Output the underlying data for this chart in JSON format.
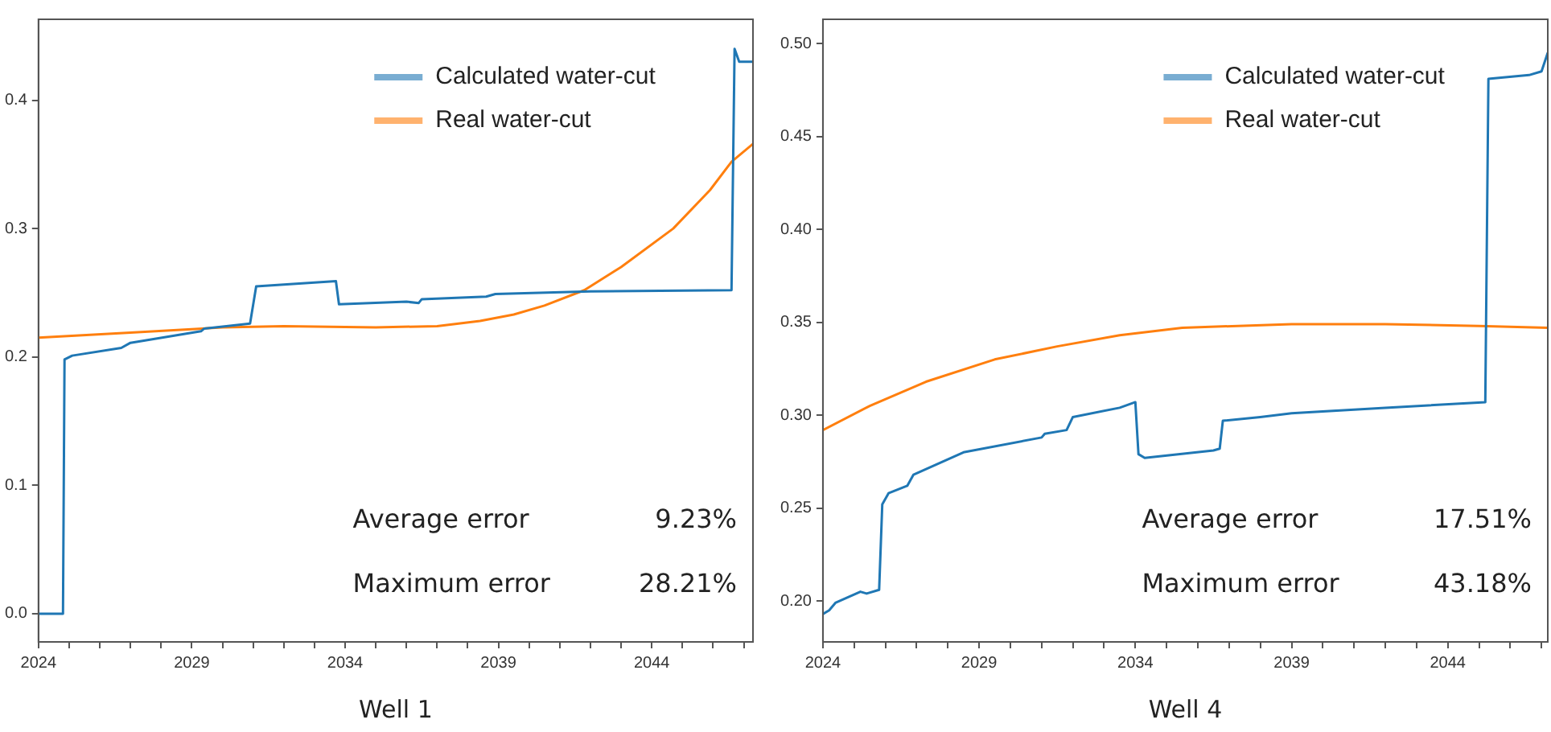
{
  "chart_data": [
    {
      "type": "line",
      "xlabel": "Well 1",
      "legend": "top right",
      "marker": "none",
      "line_style": "solid",
      "grid": false,
      "xlim": [
        2024,
        2047.3
      ],
      "ylim": [
        -0.022,
        0.463
      ],
      "xticks": [
        2024,
        {
          "value": 2025,
          "label": null
        },
        {
          "value": 2026,
          "label": null
        },
        {
          "value": 2027,
          "label": null
        },
        {
          "value": 2028,
          "label": null
        },
        2029,
        {
          "value": 2030,
          "label": null
        },
        {
          "value": 2031,
          "label": null
        },
        {
          "value": 2032,
          "label": null
        },
        {
          "value": 2033,
          "label": null
        },
        2034,
        {
          "value": 2035,
          "label": null
        },
        {
          "value": 2036,
          "label": null
        },
        {
          "value": 2037,
          "label": null
        },
        {
          "value": 2038,
          "label": null
        },
        2039,
        {
          "value": 2040,
          "label": null
        },
        {
          "value": 2041,
          "label": null
        },
        {
          "value": 2042,
          "label": null
        },
        {
          "value": 2043,
          "label": null
        },
        2044,
        {
          "value": 2045,
          "label": null
        },
        {
          "value": 2046,
          "label": null
        },
        {
          "value": 2047,
          "label": null
        }
      ],
      "yticks": [
        {
          "value": 0,
          "label": "0.0"
        },
        0.1,
        0.2,
        0.3,
        0.4
      ],
      "annotations": [
        "Average error",
        "9.23%",
        "Maximum error",
        "28.21%"
      ],
      "series": [
        {
          "name": "Calculated water-cut",
          "color": "#1f77b4",
          "x": [
            2024,
            2024.8,
            2024.85,
            2025.1,
            2026.7,
            2027,
            2029.3,
            2029.4,
            2030.9,
            2031.1,
            2033.7,
            2033.8,
            2036,
            2036.4,
            2036.5,
            2038.6,
            2038.9,
            2042,
            2046.6,
            2046.7,
            2046.85,
            2047.3
          ],
          "values": [
            0,
            0,
            0.198,
            0.201,
            0.207,
            0.211,
            0.22,
            0.222,
            0.226,
            0.255,
            0.259,
            0.241,
            0.243,
            0.242,
            0.245,
            0.247,
            0.249,
            0.251,
            0.252,
            0.44,
            0.43,
            0.43
          ]
        },
        {
          "name": "Real water-cut",
          "color": "#ff7f0e",
          "x": [
            2024,
            2027,
            2030,
            2032,
            2035,
            2037,
            2038.4,
            2039.5,
            2040.5,
            2041.8,
            2043,
            2044.7,
            2045.9,
            2046.6,
            2047.3
          ],
          "values": [
            0.215,
            0.219,
            0.223,
            0.224,
            0.223,
            0.224,
            0.228,
            0.233,
            0.24,
            0.252,
            0.27,
            0.3,
            0.33,
            0.352,
            0.366
          ]
        }
      ]
    },
    {
      "type": "line",
      "xlabel": "Well 4",
      "legend": "top right",
      "marker": "none",
      "line_style": "solid",
      "grid": false,
      "xlim": [
        2024,
        2047.2
      ],
      "ylim": [
        0.178,
        0.513
      ],
      "xticks": [
        2024,
        {
          "value": 2025,
          "label": null
        },
        {
          "value": 2026,
          "label": null
        },
        {
          "value": 2027,
          "label": null
        },
        {
          "value": 2028,
          "label": null
        },
        2029,
        {
          "value": 2030,
          "label": null
        },
        {
          "value": 2031,
          "label": null
        },
        {
          "value": 2032,
          "label": null
        },
        {
          "value": 2033,
          "label": null
        },
        2034,
        {
          "value": 2035,
          "label": null
        },
        {
          "value": 2036,
          "label": null
        },
        {
          "value": 2037,
          "label": null
        },
        {
          "value": 2038,
          "label": null
        },
        2039,
        {
          "value": 2040,
          "label": null
        },
        {
          "value": 2041,
          "label": null
        },
        {
          "value": 2042,
          "label": null
        },
        {
          "value": 2043,
          "label": null
        },
        2044,
        {
          "value": 2045,
          "label": null
        },
        {
          "value": 2046,
          "label": null
        },
        {
          "value": 2047,
          "label": null
        }
      ],
      "yticks": [
        {
          "value": 0.2,
          "label": "0.20"
        },
        {
          "value": 0.25,
          "label": "0.25"
        },
        {
          "value": 0.3,
          "label": "0.30"
        },
        {
          "value": 0.35,
          "label": "0.35"
        },
        {
          "value": 0.4,
          "label": "0.40"
        },
        {
          "value": 0.45,
          "label": "0.45"
        },
        {
          "value": 0.5,
          "label": "0.50"
        }
      ],
      "annotations": [
        "Average error",
        "17.51%",
        "Maximum error",
        "43.18%"
      ],
      "series": [
        {
          "name": "Calculated water-cut",
          "color": "#1f77b4",
          "x": [
            2024,
            2024.2,
            2024.4,
            2025.2,
            2025.4,
            2025.8,
            2025.9,
            2026.1,
            2026.7,
            2026.9,
            2028.5,
            2031,
            2031.1,
            2031.8,
            2032,
            2033.5,
            2034,
            2034.1,
            2034.3,
            2036.5,
            2036.7,
            2036.8,
            2038,
            2039,
            2042,
            2045.2,
            2045.3,
            2046.6,
            2047,
            2047.2
          ],
          "values": [
            0.193,
            0.195,
            0.199,
            0.205,
            0.204,
            0.206,
            0.252,
            0.258,
            0.262,
            0.268,
            0.28,
            0.288,
            0.29,
            0.292,
            0.299,
            0.304,
            0.307,
            0.279,
            0.277,
            0.281,
            0.282,
            0.297,
            0.299,
            0.301,
            0.304,
            0.307,
            0.481,
            0.483,
            0.485,
            0.495
          ]
        },
        {
          "name": "Real water-cut",
          "color": "#ff7f0e",
          "x": [
            2024,
            2025.5,
            2027.3,
            2029.5,
            2031.5,
            2033.5,
            2035.5,
            2039,
            2042,
            2045,
            2047.2
          ],
          "values": [
            0.292,
            0.305,
            0.318,
            0.33,
            0.337,
            0.343,
            0.347,
            0.349,
            0.349,
            0.348,
            0.347
          ]
        }
      ]
    }
  ]
}
